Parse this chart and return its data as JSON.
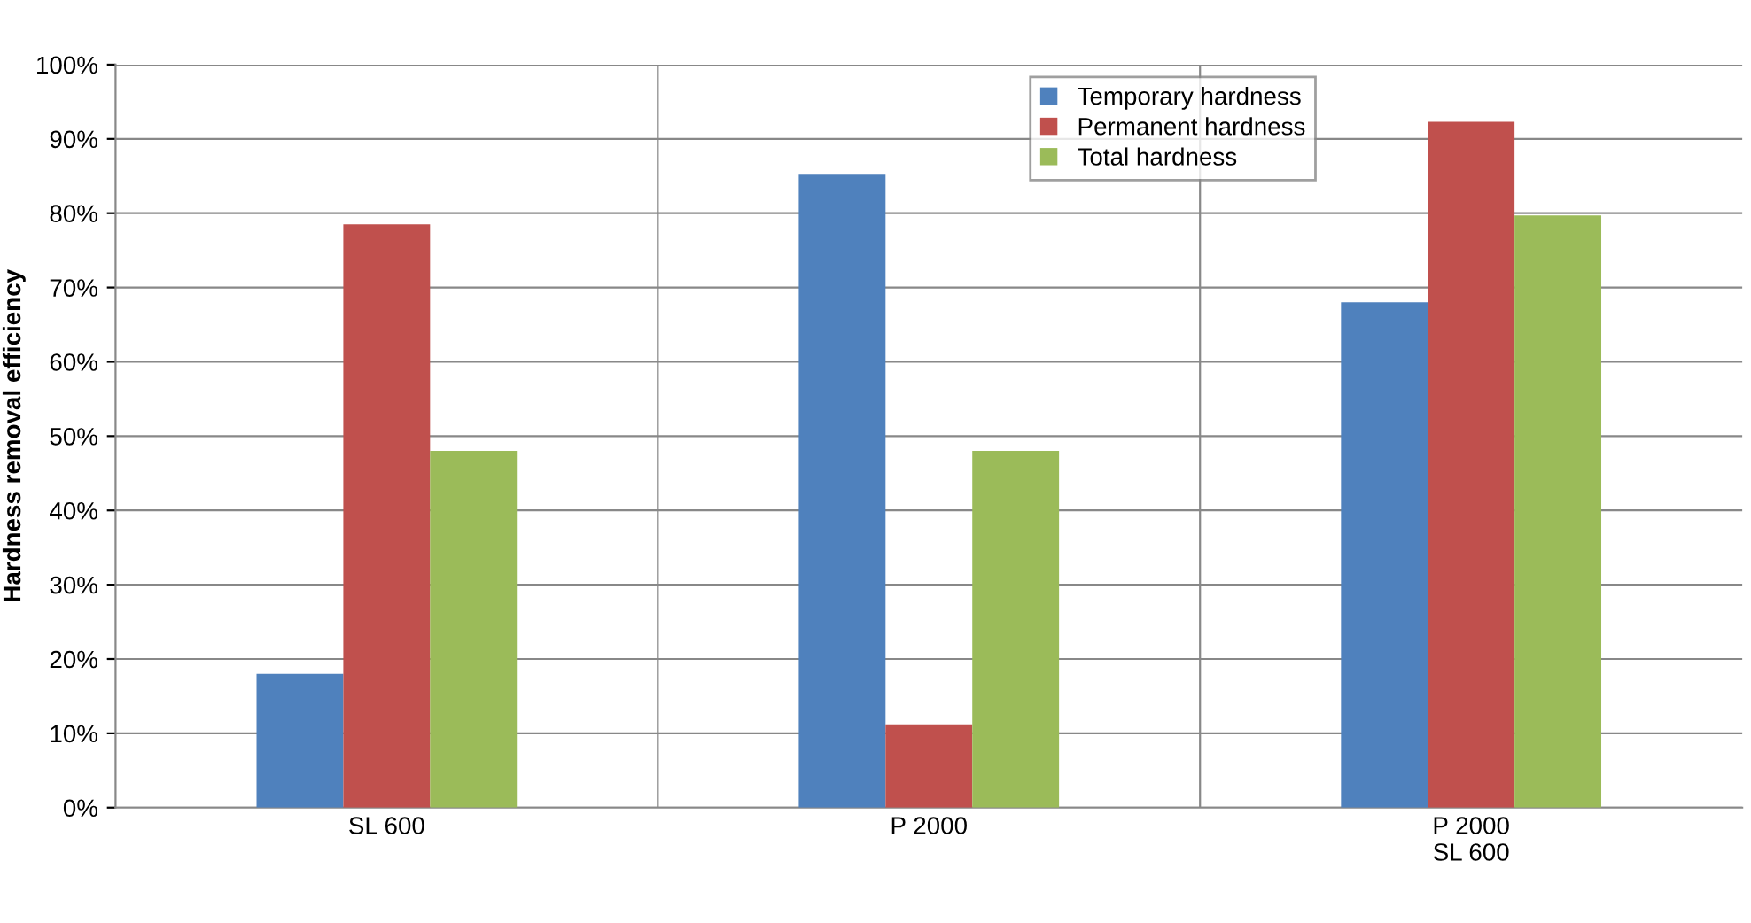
{
  "chart_data": {
    "type": "bar",
    "ylabel": "Hardness removal efficiency",
    "categories": [
      "SL 600",
      "P 2000",
      "P 2000\nSL 600"
    ],
    "series": [
      {
        "name": "Temporary hardness",
        "color": "#4f81bd",
        "values": [
          18,
          85.3,
          68
        ]
      },
      {
        "name": "Permanent hardness",
        "color": "#c0504d",
        "values": [
          78.5,
          11.2,
          92.3
        ]
      },
      {
        "name": "Total hardness",
        "color": "#9bbb59",
        "values": [
          48,
          48,
          79.7
        ]
      }
    ],
    "ylim": [
      0,
      100
    ],
    "yticks": [
      {
        "value": 0,
        "label": "0%"
      },
      {
        "value": 10,
        "label": "10%"
      },
      {
        "value": 20,
        "label": "20%"
      },
      {
        "value": 30,
        "label": "30%"
      },
      {
        "value": 40,
        "label": "40%"
      },
      {
        "value": 50,
        "label": "50%"
      },
      {
        "value": 60,
        "label": "60%"
      },
      {
        "value": 70,
        "label": "70%"
      },
      {
        "value": 80,
        "label": "80%"
      },
      {
        "value": 90,
        "label": "90%"
      },
      {
        "value": 100,
        "label": "100%"
      }
    ],
    "grid": true,
    "legend": "top center"
  }
}
